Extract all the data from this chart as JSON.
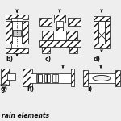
{
  "caption": "rain elements",
  "labels_row1": [
    "b)",
    "c)",
    "d)"
  ],
  "labels_row2": [
    "g)",
    "h)",
    "i)"
  ],
  "bg_color": "#eeeeee",
  "lc": "#111111",
  "figsize": [
    1.5,
    1.5
  ],
  "dpi": 100
}
